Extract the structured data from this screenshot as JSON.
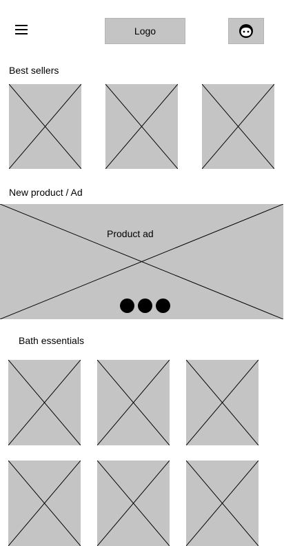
{
  "header": {
    "menu_icon": "hamburger-menu-icon",
    "logo_label": "Logo",
    "avatar_icon": "user-face-icon"
  },
  "best_sellers": {
    "title": "Best sellers",
    "item_count": 3
  },
  "promo": {
    "title": "New product / Ad",
    "ad_label": "Product ad",
    "carousel_dots": 3
  },
  "bath": {
    "title": "Bath essentials",
    "item_count": 6
  },
  "colors": {
    "placeholder": "#c4c4c4",
    "stroke": "#000000"
  }
}
